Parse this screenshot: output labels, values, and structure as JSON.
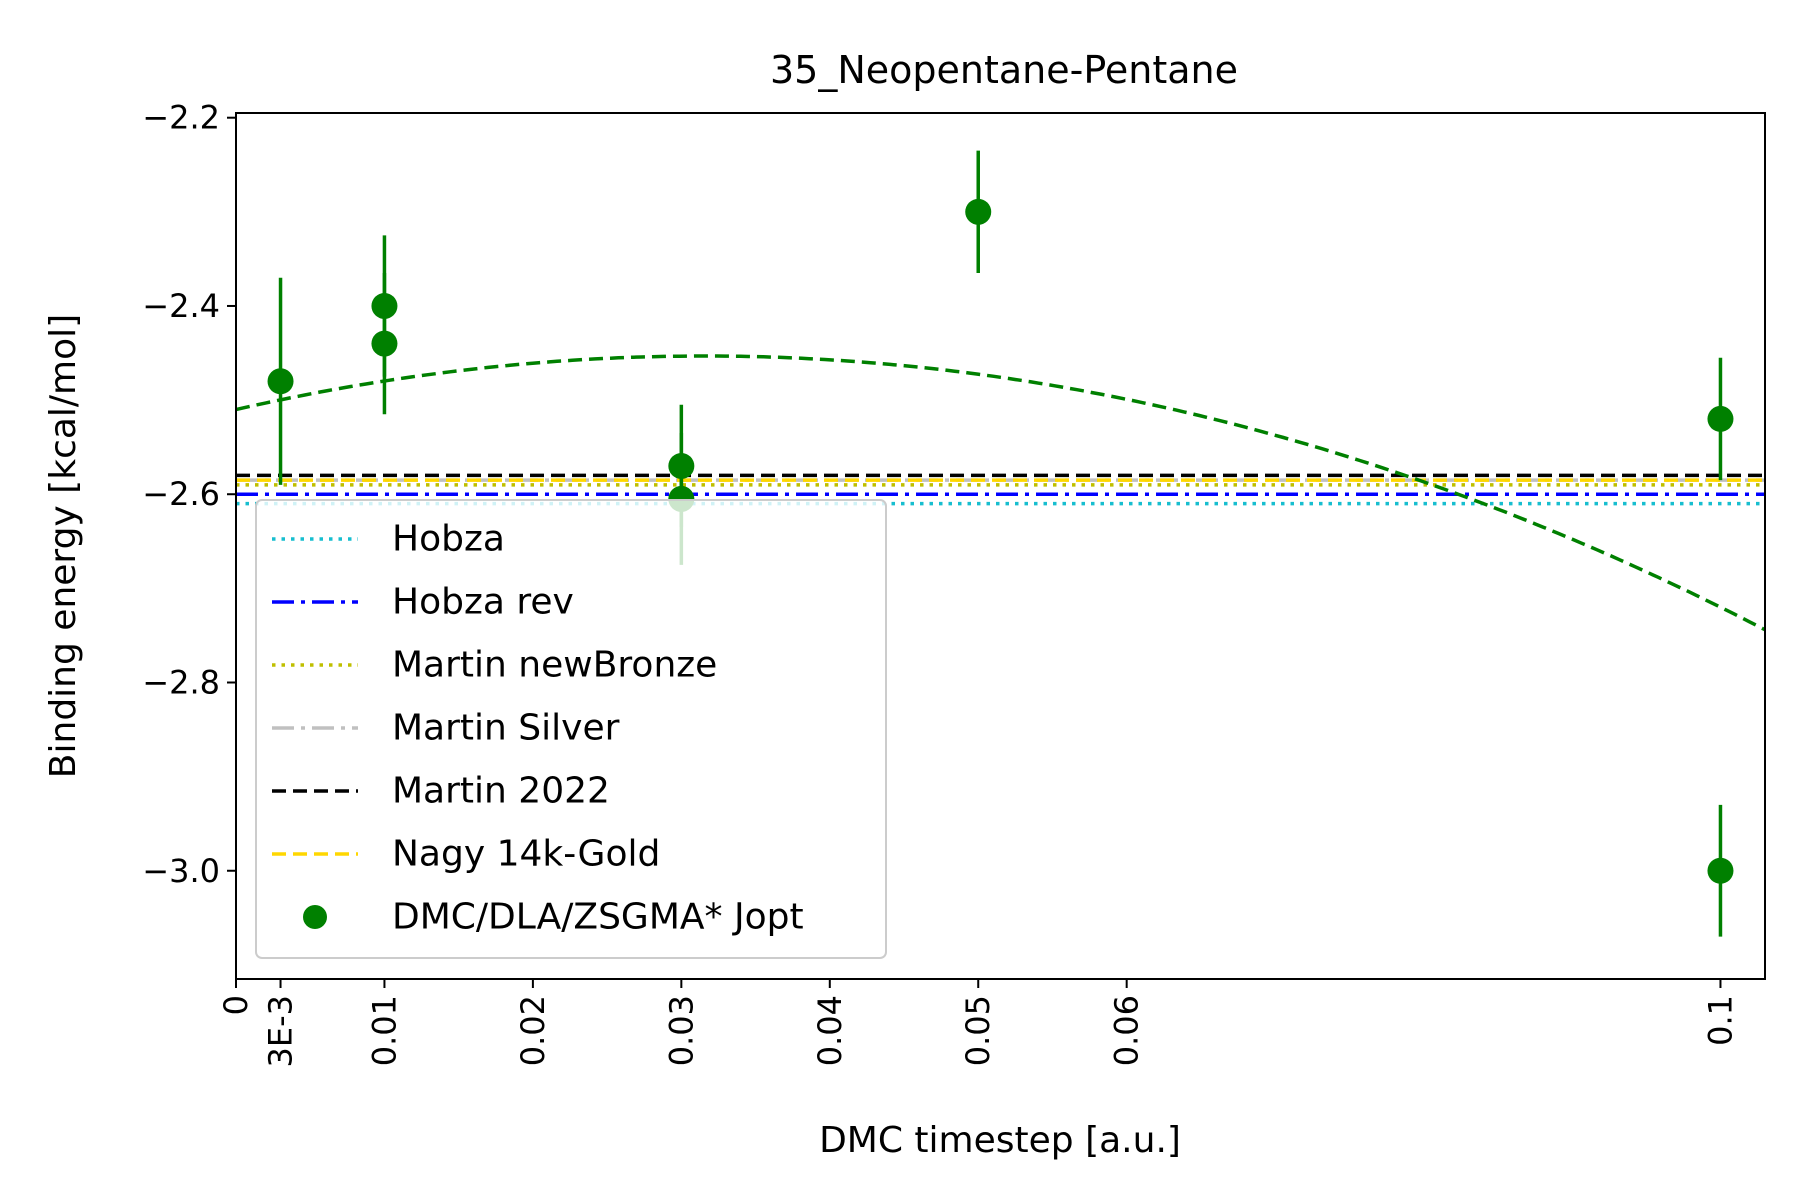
{
  "chart_data": {
    "type": "scatter",
    "title": "35_Neopentane-Pentane",
    "xlabel": "DMC timestep [a.u.]",
    "ylabel": "Binding energy [kcal/mol]",
    "xlim": [
      0,
      0.103
    ],
    "ylim": [
      -3.115,
      -2.195
    ],
    "grid": false,
    "legend_position": "lower-left",
    "x_ticks": [
      {
        "value": 0,
        "label": "0"
      },
      {
        "value": 0.003,
        "label": "3E-3"
      },
      {
        "value": 0.01,
        "label": "0.01"
      },
      {
        "value": 0.02,
        "label": "0.02"
      },
      {
        "value": 0.03,
        "label": "0.03"
      },
      {
        "value": 0.04,
        "label": "0.04"
      },
      {
        "value": 0.05,
        "label": "0.05"
      },
      {
        "value": 0.06,
        "label": "0.06"
      },
      {
        "value": 0.1,
        "label": "0.1"
      }
    ],
    "y_ticks": [
      {
        "value": -2.2,
        "label": "−2.2"
      },
      {
        "value": -2.4,
        "label": "−2.4"
      },
      {
        "value": -2.6,
        "label": "−2.6"
      },
      {
        "value": -2.8,
        "label": "−2.8"
      },
      {
        "value": -3.0,
        "label": "−3.0"
      }
    ],
    "reference_lines": [
      {
        "name": "Hobza",
        "y": -2.61,
        "color": "#17becf",
        "style": "dotted"
      },
      {
        "name": "Hobza rev",
        "y": -2.6,
        "color": "#0000ff",
        "style": "dashdot"
      },
      {
        "name": "Martin newBronze",
        "y": -2.59,
        "color": "#bfbf00",
        "style": "dotted"
      },
      {
        "name": "Martin Silver",
        "y": -2.585,
        "color": "#c0c0c0",
        "style": "dashdot"
      },
      {
        "name": "Martin 2022",
        "y": -2.58,
        "color": "#000000",
        "style": "dashed"
      },
      {
        "name": "Nagy 14k-Gold",
        "y": -2.585,
        "color": "#ffd700",
        "style": "dashed"
      }
    ],
    "series": [
      {
        "name": "DMC/DLA/ZSGMA* Jopt",
        "color": "#008000",
        "points": [
          {
            "x": 0.003,
            "y": -2.48,
            "err": 0.11
          },
          {
            "x": 0.01,
            "y": -2.4,
            "err": 0.075
          },
          {
            "x": 0.01,
            "y": -2.44,
            "err": 0.075
          },
          {
            "x": 0.03,
            "y": -2.57,
            "err": 0.065
          },
          {
            "x": 0.03,
            "y": -2.605,
            "err": 0.07
          },
          {
            "x": 0.05,
            "y": -2.3,
            "err": 0.065
          },
          {
            "x": 0.1,
            "y": -2.52,
            "err": 0.065
          },
          {
            "x": 0.1,
            "y": -3.0,
            "err": 0.07
          }
        ]
      }
    ],
    "fit": {
      "color": "#008000",
      "style": "dashed",
      "coefficients": [
        -2.51,
        3.6,
        -57.0
      ]
    },
    "legend": [
      {
        "label": "Hobza",
        "color": "#17becf",
        "style": "dotted"
      },
      {
        "label": "Hobza rev",
        "color": "#0000ff",
        "style": "dashdot"
      },
      {
        "label": "Martin newBronze",
        "color": "#bfbf00",
        "style": "dotted"
      },
      {
        "label": "Martin Silver",
        "color": "#c0c0c0",
        "style": "dashdot"
      },
      {
        "label": "Martin 2022",
        "color": "#000000",
        "style": "dashed"
      },
      {
        "label": "Nagy 14k-Gold",
        "color": "#ffd700",
        "style": "dashed"
      },
      {
        "label": "DMC/DLA/ZSGMA* Jopt",
        "color": "#008000",
        "style": "marker"
      }
    ]
  }
}
